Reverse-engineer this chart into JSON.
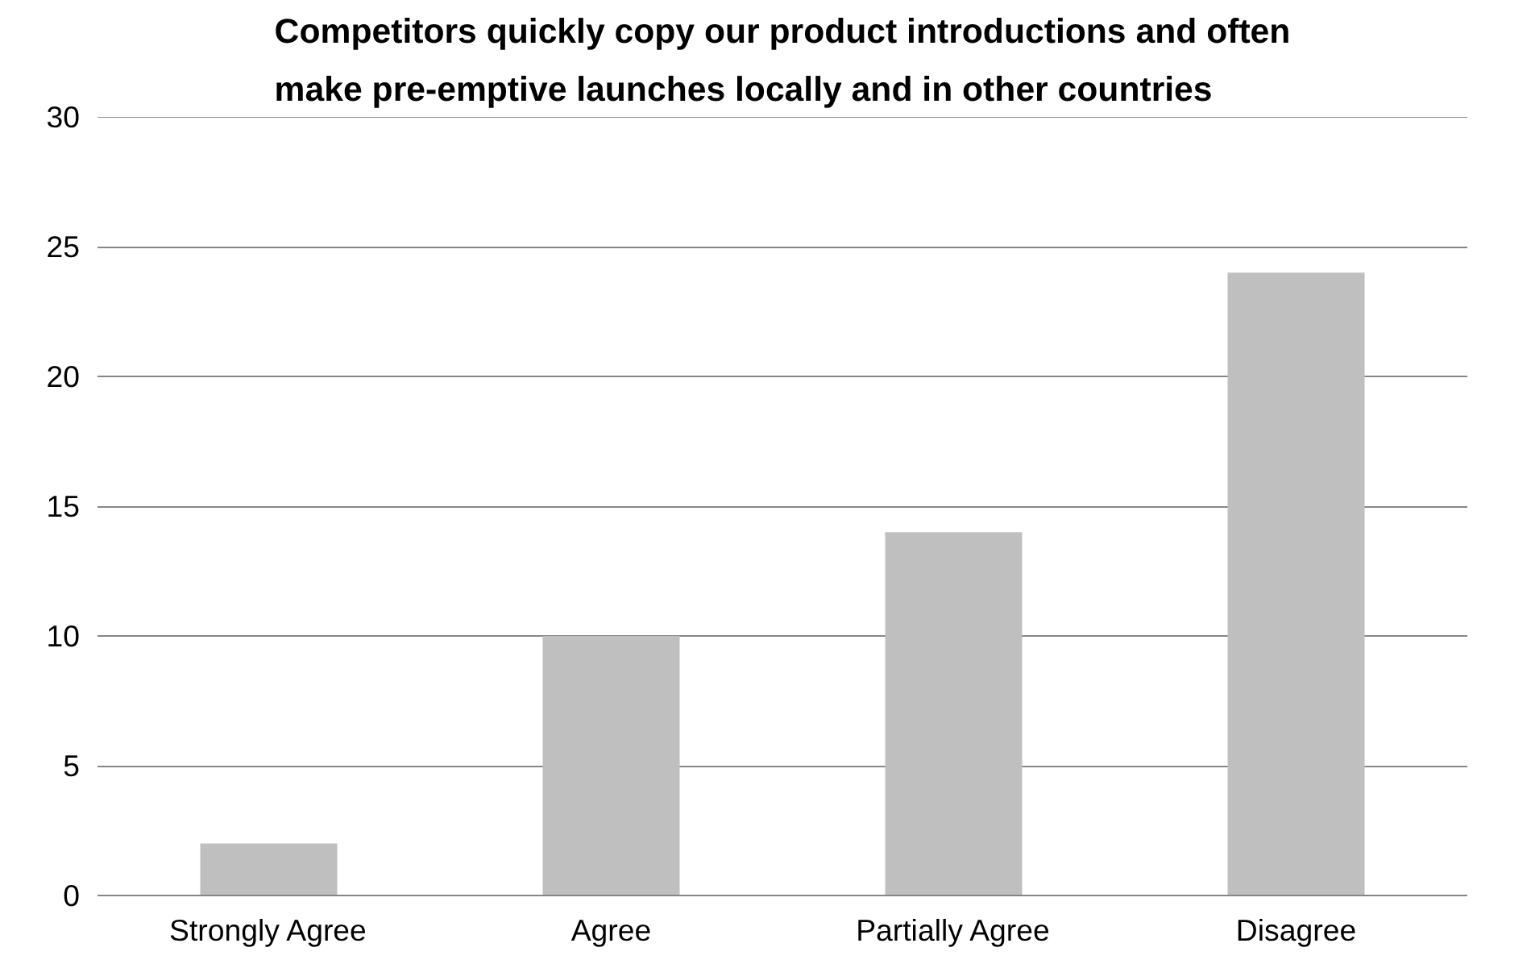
{
  "chart_data": {
    "type": "bar",
    "title": "Competitors quickly copy our product introductions and often make pre-emptive launches locally and in other countries",
    "categories": [
      "Strongly Agree",
      "Agree",
      "Partially Agree",
      "Disagree"
    ],
    "values": [
      2,
      10,
      14,
      24
    ],
    "color": "#bfbfbf",
    "ylim": [
      0,
      30
    ],
    "yticks": [
      0,
      5,
      10,
      15,
      20,
      25,
      30
    ],
    "grid": "y"
  }
}
